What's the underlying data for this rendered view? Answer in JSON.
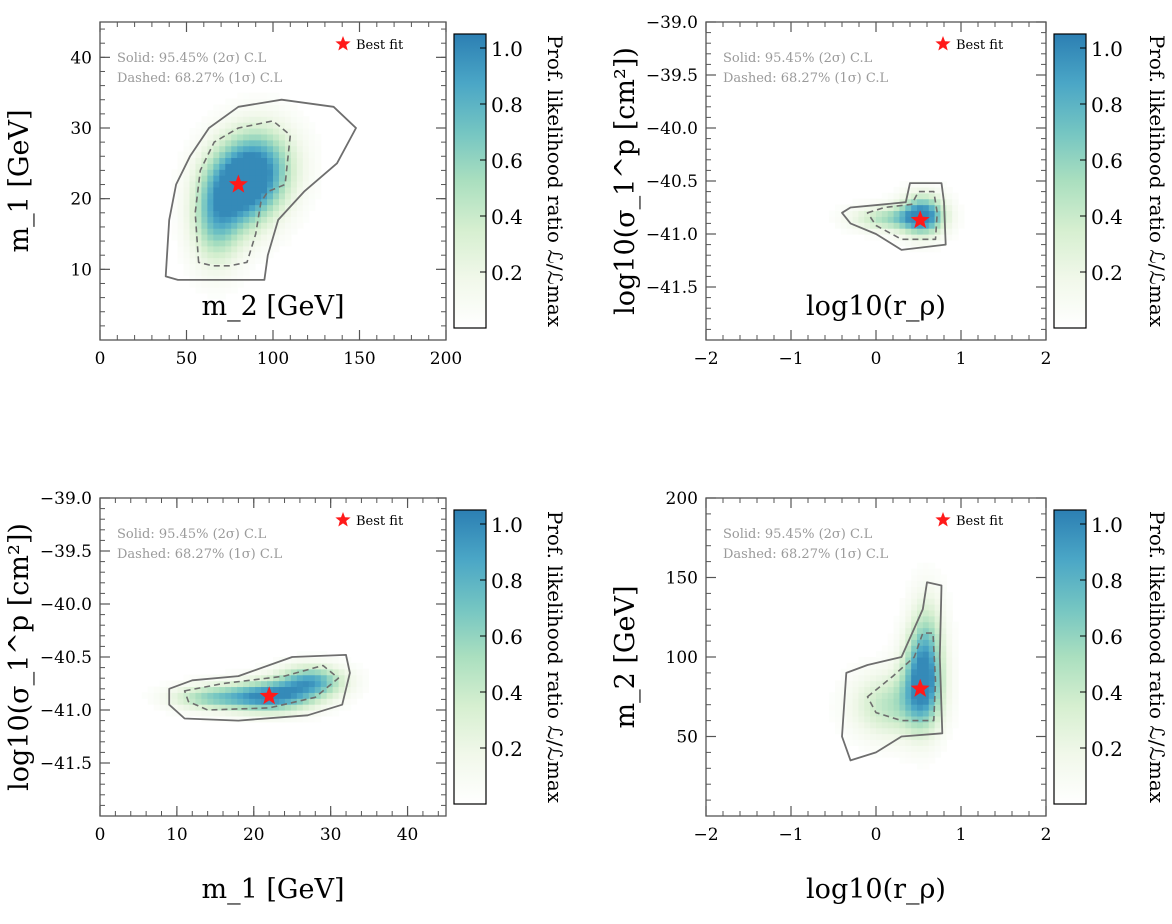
{
  "figure": {
    "colors": {
      "cmap": [
        "#ffffff",
        "#f1f8ea",
        "#d6efd0",
        "#aadfbf",
        "#74c5c2",
        "#4aa6c6",
        "#2c7fb3"
      ],
      "contour": "#6e6e6e",
      "star": "#ff1a1a",
      "note_text": "#9a9a9a"
    }
  },
  "chart_data": [
    {
      "type": "heatmap",
      "title": "",
      "xlabel": "m_2 [GeV]",
      "ylabel": "m_1 [GeV]",
      "xlim": [
        0,
        200
      ],
      "ylim": [
        0,
        45
      ],
      "xticks": [
        0,
        50,
        100,
        150,
        200
      ],
      "xtick_labels": [
        "0",
        "50",
        "100",
        "150",
        "200"
      ],
      "yticks": [
        10,
        20,
        30,
        40
      ],
      "ytick_labels": [
        "10",
        "20",
        "30",
        "40"
      ],
      "colorbar": {
        "label": "Prof. likelihood ratio ℒ/ℒmax",
        "range": [
          0,
          1.05
        ],
        "ticks": [
          0.2,
          0.4,
          0.6,
          0.8,
          1.0
        ],
        "tick_labels": [
          "0.2",
          "0.4",
          "0.6",
          "0.8",
          "1.0"
        ]
      },
      "annotations": [
        "Solid: 95.45% (2σ) C.L",
        "Dashed: 68.27% (1σ) C.L"
      ],
      "legend": {
        "label": "Best fit",
        "position": "top-right"
      },
      "best_fit": {
        "x": 80,
        "y": 22
      },
      "likelihood_peaks": [
        {
          "x": 82,
          "y": 22,
          "sx": 14,
          "sy": 4.2,
          "a": 1.0
        },
        {
          "x": 67,
          "y": 17,
          "sx": 10,
          "sy": 4.5,
          "a": 0.6
        },
        {
          "x": 95,
          "y": 25,
          "sx": 14,
          "sy": 4.0,
          "a": 0.55
        }
      ],
      "contour_2sigma": [
        [
          38,
          9
        ],
        [
          40,
          17
        ],
        [
          44,
          22
        ],
        [
          52,
          26
        ],
        [
          63,
          30
        ],
        [
          80,
          33
        ],
        [
          105,
          34
        ],
        [
          135,
          33
        ],
        [
          148,
          30
        ],
        [
          137,
          25
        ],
        [
          118,
          21
        ],
        [
          103,
          17
        ],
        [
          97,
          12
        ],
        [
          95,
          8.5
        ],
        [
          75,
          8.5
        ],
        [
          45,
          8.5
        ]
      ],
      "contour_1sigma": [
        [
          57,
          11
        ],
        [
          55,
          18
        ],
        [
          58,
          24
        ],
        [
          66,
          28
        ],
        [
          80,
          30
        ],
        [
          100,
          31
        ],
        [
          110,
          29
        ],
        [
          107,
          22
        ],
        [
          97,
          21
        ],
        [
          93,
          19.5
        ],
        [
          90,
          15
        ],
        [
          85,
          11
        ],
        [
          75,
          10.5
        ],
        [
          65,
          10.5
        ]
      ]
    },
    {
      "type": "heatmap",
      "title": "",
      "xlabel": "log10(r_ρ)",
      "ylabel": "log10(σ_1^p [cm²])",
      "xlim": [
        -2,
        2
      ],
      "ylim": [
        -42.0,
        -39.0
      ],
      "xticks": [
        -2,
        -1,
        0,
        1,
        2
      ],
      "xtick_labels": [
        "−2",
        "−1",
        "0",
        "1",
        "2"
      ],
      "yticks": [
        -39.0,
        -39.5,
        -40.0,
        -40.5,
        -41.0,
        -41.5
      ],
      "ytick_labels": [
        "−39.0",
        "−39.5",
        "−40.0",
        "−40.5",
        "−41.0",
        "−41.5"
      ],
      "colorbar": {
        "label": "Prof. likelihood ratio ℒ/ℒmax",
        "range": [
          0,
          1.05
        ],
        "ticks": [
          0.2,
          0.4,
          0.6,
          0.8,
          1.0
        ],
        "tick_labels": [
          "0.2",
          "0.4",
          "0.6",
          "0.8",
          "1.0"
        ]
      },
      "annotations": [
        "Solid: 95.45% (2σ) C.L",
        "Dashed: 68.27% (1σ) C.L"
      ],
      "legend": {
        "label": "Best fit",
        "position": "top-right"
      },
      "best_fit": {
        "x": 0.52,
        "y": -40.87
      },
      "likelihood_peaks": [
        {
          "x": 0.55,
          "y": -40.82,
          "sx": 0.18,
          "sy": 0.13,
          "a": 1.0
        },
        {
          "x": 0.15,
          "y": -40.85,
          "sx": 0.3,
          "sy": 0.08,
          "a": 0.5
        }
      ],
      "contour_2sigma": [
        [
          -0.4,
          -40.8
        ],
        [
          -0.3,
          -40.75
        ],
        [
          0.1,
          -40.72
        ],
        [
          0.35,
          -40.7
        ],
        [
          0.4,
          -40.52
        ],
        [
          0.77,
          -40.52
        ],
        [
          0.8,
          -40.7
        ],
        [
          0.82,
          -41.1
        ],
        [
          0.3,
          -41.15
        ],
        [
          0,
          -41.0
        ],
        [
          -0.3,
          -40.9
        ]
      ],
      "contour_1sigma": [
        [
          -0.1,
          -40.8
        ],
        [
          0.1,
          -40.75
        ],
        [
          0.42,
          -40.72
        ],
        [
          0.5,
          -40.6
        ],
        [
          0.68,
          -40.6
        ],
        [
          0.72,
          -40.8
        ],
        [
          0.7,
          -41.05
        ],
        [
          0.3,
          -41.05
        ],
        [
          0,
          -40.92
        ]
      ]
    },
    {
      "type": "heatmap",
      "title": "",
      "xlabel": "m_1 [GeV]",
      "ylabel": "log10(σ_1^p [cm²])",
      "xlim": [
        0,
        45
      ],
      "ylim": [
        -42.0,
        -39.0
      ],
      "xticks": [
        0,
        10,
        20,
        30,
        40
      ],
      "xtick_labels": [
        "0",
        "10",
        "20",
        "30",
        "40"
      ],
      "yticks": [
        -39.0,
        -39.5,
        -40.0,
        -40.5,
        -41.0,
        -41.5
      ],
      "ytick_labels": [
        "−39.0",
        "−39.5",
        "−40.0",
        "−40.5",
        "−41.0",
        "−41.5"
      ],
      "colorbar": {
        "label": "Prof. likelihood ratio ℒ/ℒmax",
        "range": [
          0,
          1.05
        ],
        "ticks": [
          0.2,
          0.4,
          0.6,
          0.8,
          1.0
        ],
        "tick_labels": [
          "0.2",
          "0.4",
          "0.6",
          "0.8",
          "1.0"
        ]
      },
      "annotations": [
        "Solid: 95.45% (2σ) C.L",
        "Dashed: 68.27% (1σ) C.L"
      ],
      "legend": {
        "label": "Best fit",
        "position": "top-right"
      },
      "best_fit": {
        "x": 22,
        "y": -40.87
      },
      "likelihood_peaks": [
        {
          "x": 22,
          "y": -40.87,
          "sx": 4,
          "sy": 0.1,
          "a": 1.0
        },
        {
          "x": 27.5,
          "y": -40.72,
          "sx": 3,
          "sy": 0.1,
          "a": 0.8
        },
        {
          "x": 14,
          "y": -40.88,
          "sx": 3.5,
          "sy": 0.08,
          "a": 0.5
        }
      ],
      "contour_2sigma": [
        [
          9,
          -40.8
        ],
        [
          12,
          -40.72
        ],
        [
          18,
          -40.68
        ],
        [
          25,
          -40.5
        ],
        [
          32,
          -40.48
        ],
        [
          32.5,
          -40.65
        ],
        [
          31.5,
          -40.95
        ],
        [
          27,
          -41.05
        ],
        [
          18,
          -41.1
        ],
        [
          11,
          -41.08
        ],
        [
          9,
          -40.95
        ]
      ],
      "contour_1sigma": [
        [
          11,
          -40.82
        ],
        [
          16,
          -40.75
        ],
        [
          24,
          -40.68
        ],
        [
          29,
          -40.58
        ],
        [
          31,
          -40.7
        ],
        [
          28,
          -40.88
        ],
        [
          22,
          -40.98
        ],
        [
          14,
          -41.0
        ],
        [
          11.5,
          -40.92
        ]
      ]
    },
    {
      "type": "heatmap",
      "title": "",
      "xlabel": "log10(r_ρ)",
      "ylabel": "m_2 [GeV]",
      "xlim": [
        -2,
        2
      ],
      "ylim": [
        0,
        200
      ],
      "xticks": [
        -2,
        -1,
        0,
        1,
        2
      ],
      "xtick_labels": [
        "−2",
        "−1",
        "0",
        "1",
        "2"
      ],
      "yticks": [
        50,
        100,
        150,
        200
      ],
      "ytick_labels": [
        "50",
        "100",
        "150",
        "200"
      ],
      "colorbar": {
        "label": "Prof. likelihood ratio ℒ/ℒmax",
        "range": [
          0,
          1.05
        ],
        "ticks": [
          0.2,
          0.4,
          0.6,
          0.8,
          1.0
        ],
        "tick_labels": [
          "0.2",
          "0.4",
          "0.6",
          "0.8",
          "1.0"
        ]
      },
      "annotations": [
        "Solid: 95.45% (2σ) C.L",
        "Dashed: 68.27% (1σ) C.L"
      ],
      "legend": {
        "label": "Best fit",
        "position": "top-right"
      },
      "best_fit": {
        "x": 0.52,
        "y": 80
      },
      "likelihood_peaks": [
        {
          "x": 0.55,
          "y": 85,
          "sx": 0.16,
          "sy": 20,
          "a": 1.0
        },
        {
          "x": 0.15,
          "y": 70,
          "sx": 0.3,
          "sy": 14,
          "a": 0.45
        },
        {
          "x": 0.6,
          "y": 115,
          "sx": 0.14,
          "sy": 20,
          "a": 0.35
        }
      ],
      "contour_2sigma": [
        [
          -0.35,
          90
        ],
        [
          -0.1,
          95
        ],
        [
          0.3,
          100
        ],
        [
          0.55,
          130
        ],
        [
          0.6,
          147
        ],
        [
          0.77,
          145
        ],
        [
          0.75,
          100
        ],
        [
          0.78,
          52
        ],
        [
          0.3,
          50
        ],
        [
          0,
          40
        ],
        [
          -0.3,
          35
        ],
        [
          -0.4,
          50
        ]
      ],
      "contour_1sigma": [
        [
          -0.1,
          75
        ],
        [
          0.2,
          88
        ],
        [
          0.45,
          100
        ],
        [
          0.55,
          115
        ],
        [
          0.67,
          115
        ],
        [
          0.7,
          85
        ],
        [
          0.68,
          60
        ],
        [
          0.3,
          60
        ],
        [
          0,
          65
        ]
      ]
    }
  ]
}
